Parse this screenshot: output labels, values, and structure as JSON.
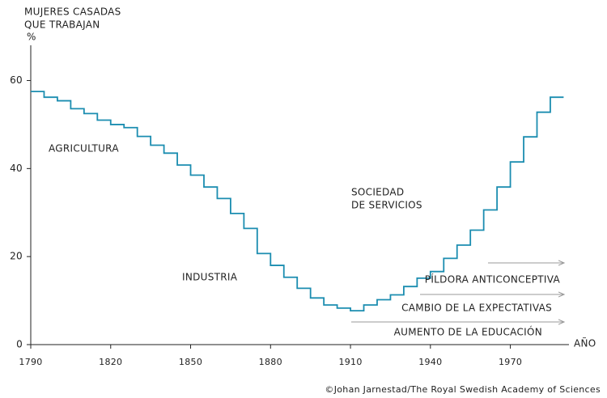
{
  "chart_data": {
    "type": "step",
    "title": [
      "MUJERES CASADAS",
      "QUE TRABAJAN"
    ],
    "y_label": "%",
    "x_label": "AÑO",
    "source": "©Johan Jarnestad/The Royal Swedish Academy of Sciences",
    "x": [
      1790,
      1795,
      1800,
      1805,
      1810,
      1815,
      1820,
      1825,
      1830,
      1835,
      1840,
      1845,
      1850,
      1855,
      1860,
      1865,
      1870,
      1875,
      1880,
      1885,
      1890,
      1895,
      1900,
      1905,
      1910,
      1915,
      1920,
      1925,
      1930,
      1935,
      1940,
      1945,
      1950,
      1955,
      1960,
      1965,
      1970,
      1975,
      1980,
      1985,
      1990
    ],
    "series": [
      {
        "color": "#1b8db0",
        "values": [
          57.5,
          56.2,
          55.4,
          53.6,
          52.5,
          51,
          50,
          49.3,
          47.3,
          45.3,
          43.5,
          40.8,
          38.5,
          35.8,
          33.2,
          29.8,
          26.4,
          20.7,
          18,
          15.3,
          12.8,
          10.6,
          9,
          8.3,
          7.7,
          9,
          10.2,
          11.3,
          13.2,
          15.1,
          16.6,
          19.6,
          22.6,
          26,
          30.6,
          35.8,
          41.5,
          47.2,
          52.8,
          56.2,
          56.2
        ]
      }
    ],
    "xlim": [
      1790,
      1992
    ],
    "xticks": [
      1790,
      1820,
      1850,
      1880,
      1910,
      1940,
      1970
    ],
    "ylim": [
      0,
      68
    ],
    "yticks": [
      0,
      20,
      40,
      60
    ],
    "annotations": [
      "AGRICULTURA",
      "INDUSTRIA",
      "SOCIEDAD",
      "DE SERVICIOS",
      "PÍLDORA ANTICONCEPTIVA",
      "CAMBIO DE LA EXPECTATIVAS",
      "AUMENTO DE LA EDUCACIÓN"
    ]
  }
}
